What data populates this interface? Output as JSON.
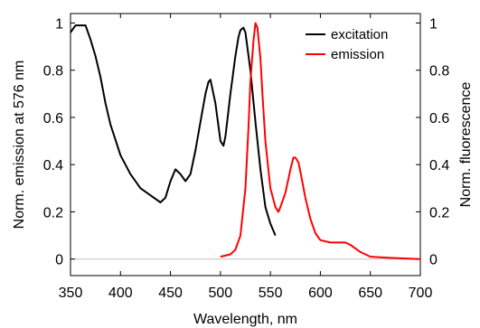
{
  "chart_data": {
    "type": "line",
    "xlabel": "Wavelength, nm",
    "ylabel_left": "Norm. emission at 576 nm",
    "ylabel_right": "Norm. fluorescence",
    "xlim": [
      350,
      700
    ],
    "ylim_left": [
      -0.07,
      1.04
    ],
    "ylim_right": [
      -0.07,
      1.04
    ],
    "x_ticks": [
      350,
      400,
      450,
      500,
      550,
      600,
      650,
      700
    ],
    "y_ticks_left": [
      0,
      0.2,
      0.4,
      0.6,
      0.8,
      1
    ],
    "y_ticks_right": [
      0,
      0.2,
      0.4,
      0.6,
      0.8,
      1
    ],
    "x_tick_labels": [
      "350",
      "400",
      "450",
      "500",
      "550",
      "600",
      "650",
      "700"
    ],
    "y_tick_labels_left": [
      "0",
      "0.2",
      "0.4",
      "0.6",
      "0.8",
      "1"
    ],
    "y_tick_labels_right": [
      "0",
      "0.2",
      "0.4",
      "0.6",
      "0.8",
      "1"
    ],
    "legend_position": "top-right",
    "grid": false,
    "series": [
      {
        "name": "excitation",
        "color": "#000000",
        "axis": "left",
        "x": [
          350,
          355,
          360,
          365,
          370,
          375,
          380,
          385,
          390,
          400,
          410,
          420,
          430,
          440,
          445,
          450,
          455,
          460,
          465,
          470,
          475,
          480,
          485,
          488,
          490,
          495,
          500,
          503,
          505,
          510,
          515,
          518,
          520,
          523,
          525,
          530,
          535,
          540,
          545,
          550,
          555
        ],
        "y": [
          0.96,
          0.99,
          0.99,
          0.99,
          0.93,
          0.86,
          0.77,
          0.66,
          0.57,
          0.44,
          0.36,
          0.3,
          0.27,
          0.24,
          0.26,
          0.33,
          0.38,
          0.36,
          0.33,
          0.36,
          0.46,
          0.58,
          0.7,
          0.75,
          0.76,
          0.66,
          0.5,
          0.48,
          0.52,
          0.7,
          0.86,
          0.94,
          0.97,
          0.98,
          0.96,
          0.8,
          0.58,
          0.38,
          0.22,
          0.15,
          0.1
        ]
      },
      {
        "name": "emission",
        "color": "#ff0000",
        "axis": "right",
        "x": [
          500,
          510,
          515,
          520,
          525,
          528,
          530,
          533,
          535,
          537,
          540,
          542,
          545,
          550,
          555,
          558,
          560,
          565,
          570,
          573,
          575,
          578,
          580,
          585,
          590,
          595,
          600,
          610,
          620,
          625,
          630,
          640,
          650,
          670,
          700
        ],
        "y": [
          0.01,
          0.02,
          0.04,
          0.1,
          0.3,
          0.55,
          0.75,
          0.92,
          1.0,
          0.98,
          0.85,
          0.7,
          0.5,
          0.3,
          0.22,
          0.2,
          0.22,
          0.28,
          0.38,
          0.43,
          0.43,
          0.41,
          0.37,
          0.26,
          0.17,
          0.11,
          0.08,
          0.07,
          0.07,
          0.07,
          0.06,
          0.03,
          0.01,
          0.005,
          0.0
        ]
      }
    ]
  }
}
